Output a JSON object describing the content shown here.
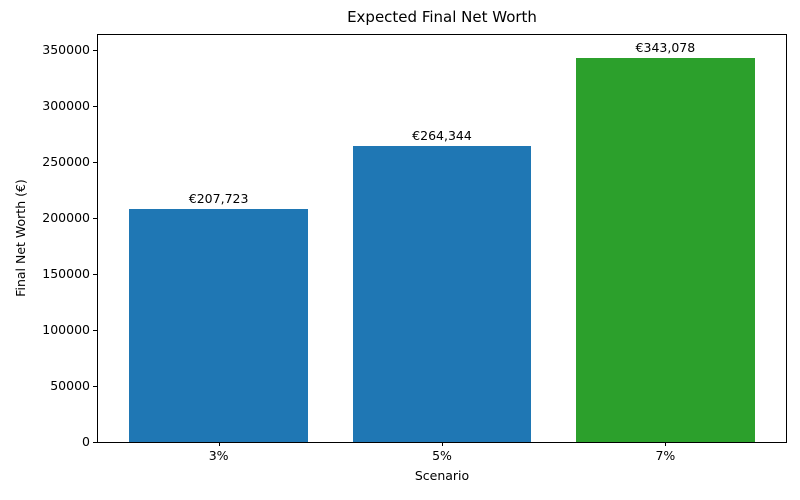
{
  "chart_data": {
    "type": "bar",
    "title": "Expected Final Net Worth",
    "xlabel": "Scenario",
    "ylabel": "Final Net Worth (€)",
    "categories": [
      "3%",
      "5%",
      "7%"
    ],
    "values": [
      207723,
      264344,
      343078
    ],
    "value_labels": [
      "€207,723",
      "€264,344",
      "€343,078"
    ],
    "bar_colors": [
      "#1f77b4",
      "#1f77b4",
      "#2ca02c"
    ],
    "yticks": [
      0,
      50000,
      100000,
      150000,
      200000,
      250000,
      300000,
      350000
    ],
    "ylim": [
      0,
      363400
    ],
    "bar_width_fraction": 0.8,
    "grid": false,
    "legend": "none",
    "colors": {
      "text": "#000000",
      "spine": "#000000",
      "background": "#ffffff",
      "bar_blue": "#1f77b4",
      "bar_green": "#2ca02c"
    }
  }
}
